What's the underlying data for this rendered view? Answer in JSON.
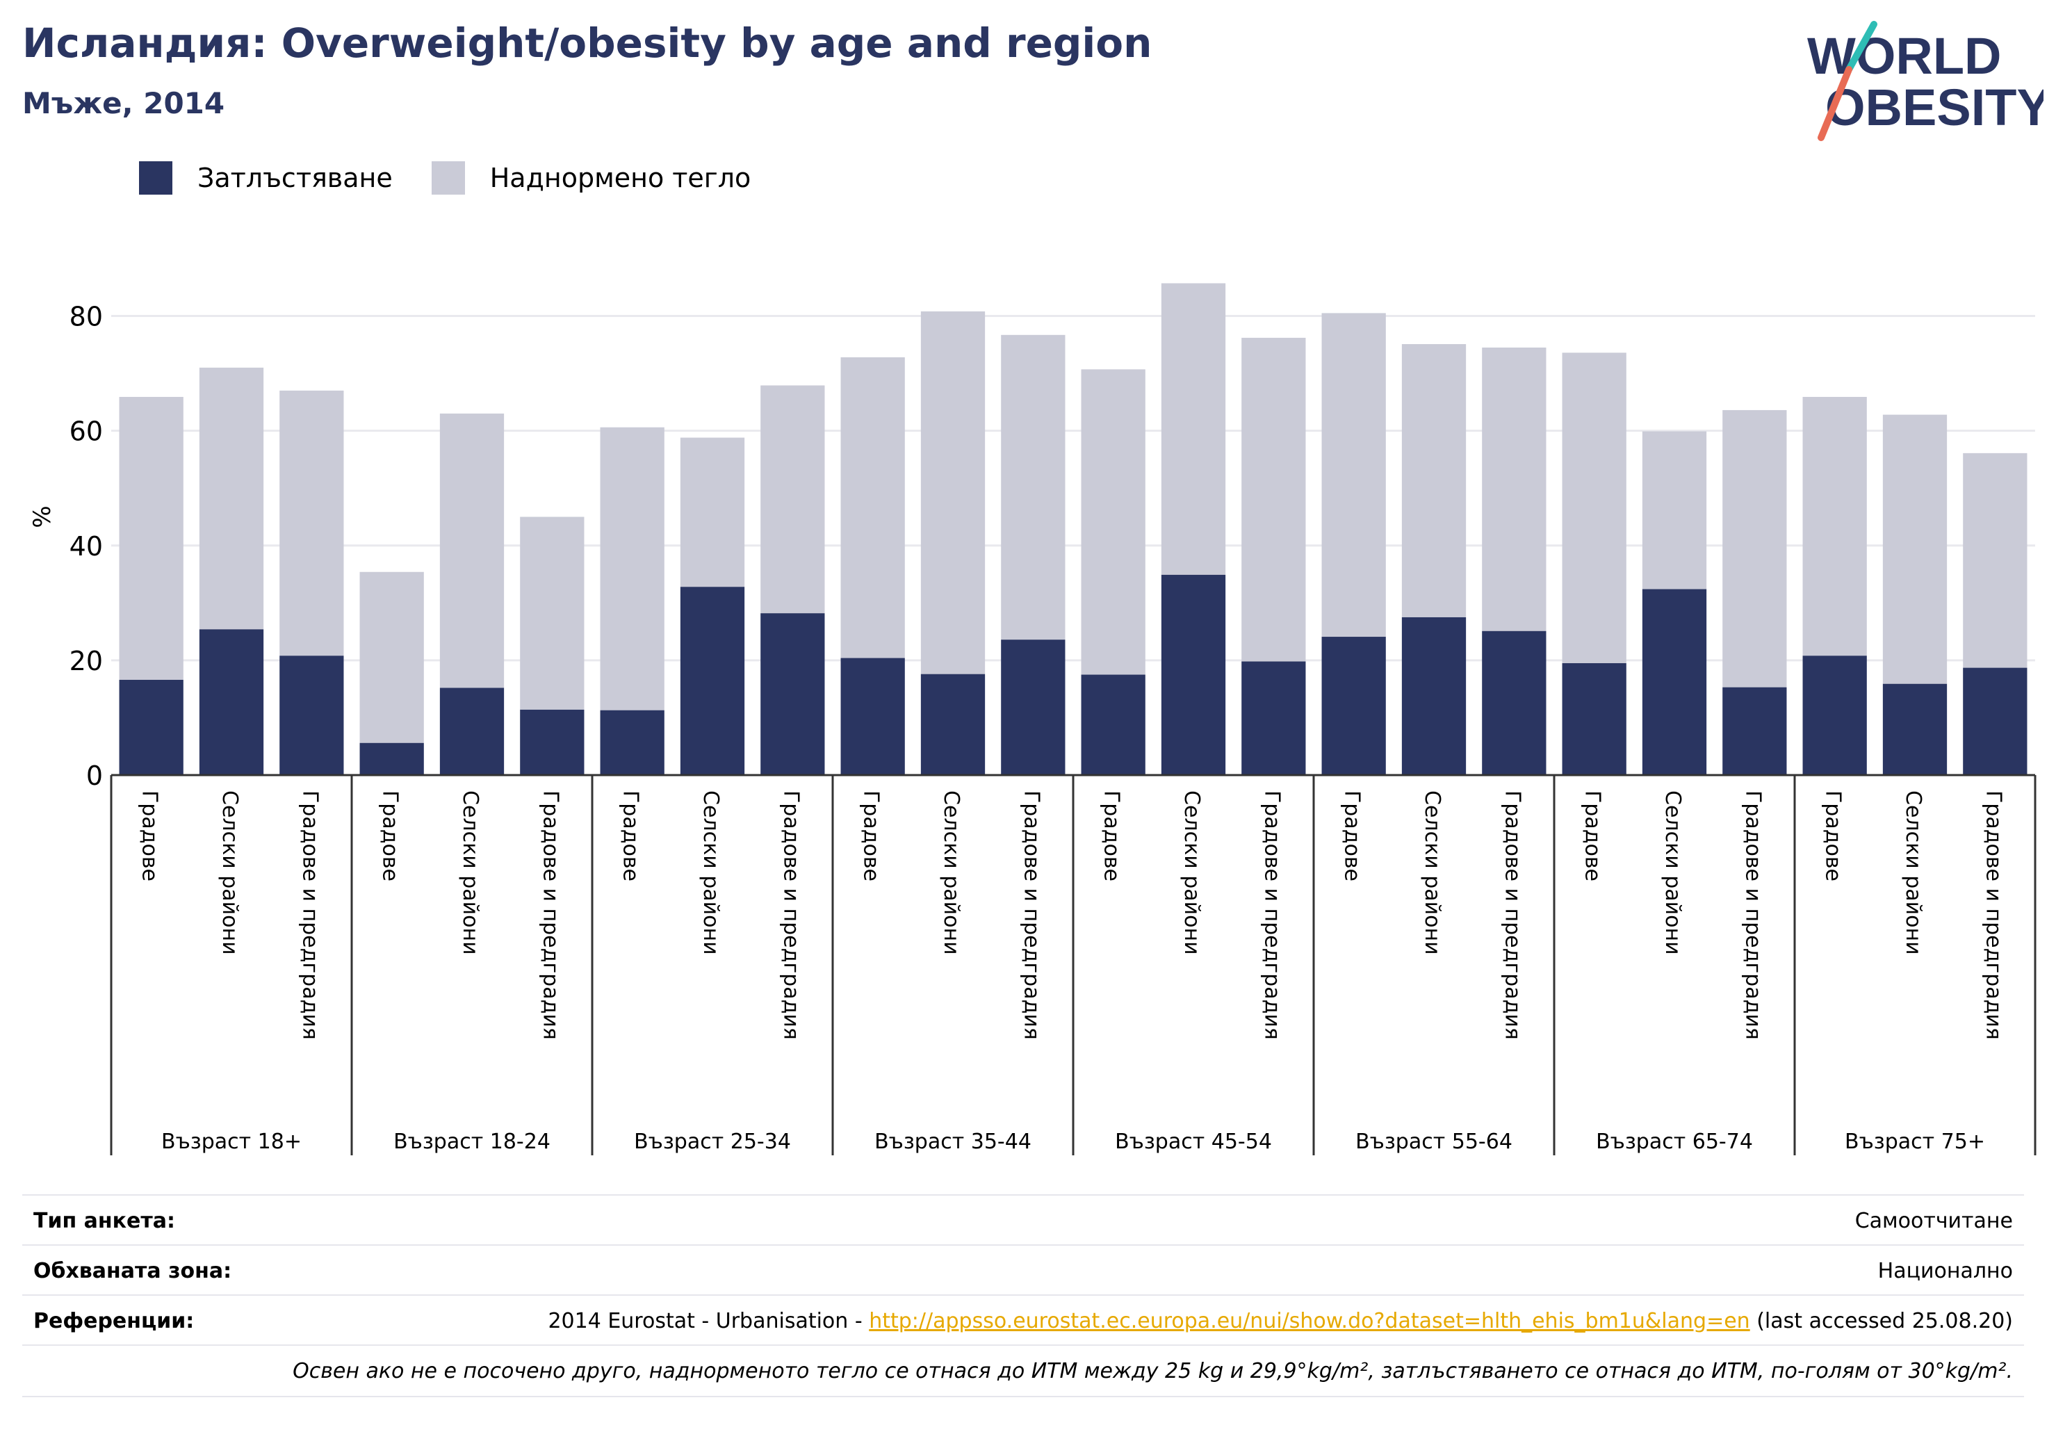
{
  "header": {
    "title": "Исландия: Overweight/obesity by age and region",
    "subtitle": "Мъже, 2014"
  },
  "logo": {
    "line1": "WORLD",
    "line2": "OBESITY"
  },
  "legend": [
    {
      "label": "Затлъстяване",
      "color": "#2a3561"
    },
    {
      "label": "Наднормено тегло",
      "color": "#cacbd7"
    }
  ],
  "chart_data": {
    "type": "bar",
    "stacked": true,
    "ylabel": "%",
    "ylim": [
      0,
      90
    ],
    "yticks": [
      0,
      20,
      40,
      60,
      80
    ],
    "grid": true,
    "legend_position": "top-left",
    "groups": [
      {
        "label": "Възраст 18+",
        "categories": [
          "Градове",
          "Селски райони",
          "Градове и предградия"
        ]
      },
      {
        "label": "Възраст 18-24",
        "categories": [
          "Градове",
          "Селски райони",
          "Градове и предградия"
        ]
      },
      {
        "label": "Възраст 25-34",
        "categories": [
          "Градове",
          "Селски райони",
          "Градове и предградия"
        ]
      },
      {
        "label": "Възраст 35-44",
        "categories": [
          "Градове",
          "Селски райони",
          "Градове и предградия"
        ]
      },
      {
        "label": "Възраст 45-54",
        "categories": [
          "Градове",
          "Селски райони",
          "Градове и предградия"
        ]
      },
      {
        "label": "Възраст 55-64",
        "categories": [
          "Градове",
          "Селски райони",
          "Градове и предградия"
        ]
      },
      {
        "label": "Възраст 65-74",
        "categories": [
          "Градове",
          "Селски райони",
          "Градове и предградия"
        ]
      },
      {
        "label": "Възраст 75+",
        "categories": [
          "Градове",
          "Селски райони",
          "Градове и предградия"
        ]
      }
    ],
    "series": [
      {
        "name": "Затлъстяване",
        "color": "#2a3561",
        "values": [
          16.6,
          25.4,
          20.8,
          5.6,
          15.2,
          11.4,
          11.3,
          32.8,
          28.2,
          20.4,
          17.6,
          23.6,
          17.5,
          34.9,
          19.8,
          24.1,
          27.5,
          25.1,
          19.5,
          32.4,
          15.3,
          20.8,
          15.9,
          18.7
        ]
      },
      {
        "name": "Наднормено тегло",
        "color": "#cacbd7",
        "values": [
          49.3,
          45.6,
          46.2,
          29.8,
          47.8,
          33.6,
          49.3,
          26.0,
          39.7,
          52.4,
          63.2,
          53.1,
          53.2,
          50.8,
          56.4,
          56.4,
          47.6,
          49.4,
          54.1,
          27.5,
          48.3,
          45.1,
          46.9,
          37.4
        ]
      }
    ]
  },
  "info": {
    "survey_key": "Тип анкета:",
    "survey_val": "Самоотчитане",
    "area_key": "Обхваната зона:",
    "area_val": "Национално",
    "ref_key": "Референции:",
    "ref_prefix": "2014 Eurostat - Urbanisation - ",
    "ref_link": "http://appsso.eurostat.ec.europa.eu/nui/show.do?dataset=hlth_ehis_bm1u&lang=en",
    "ref_suffix": " (last accessed 25.08.20)",
    "note": "Освен ако не е посочено друго, наднорменото тегло се отнася до ИТМ между 25 kg и 29,9°kg/m², затлъстяването се отнася до ИТМ, по-голям от 30°kg/m²."
  }
}
